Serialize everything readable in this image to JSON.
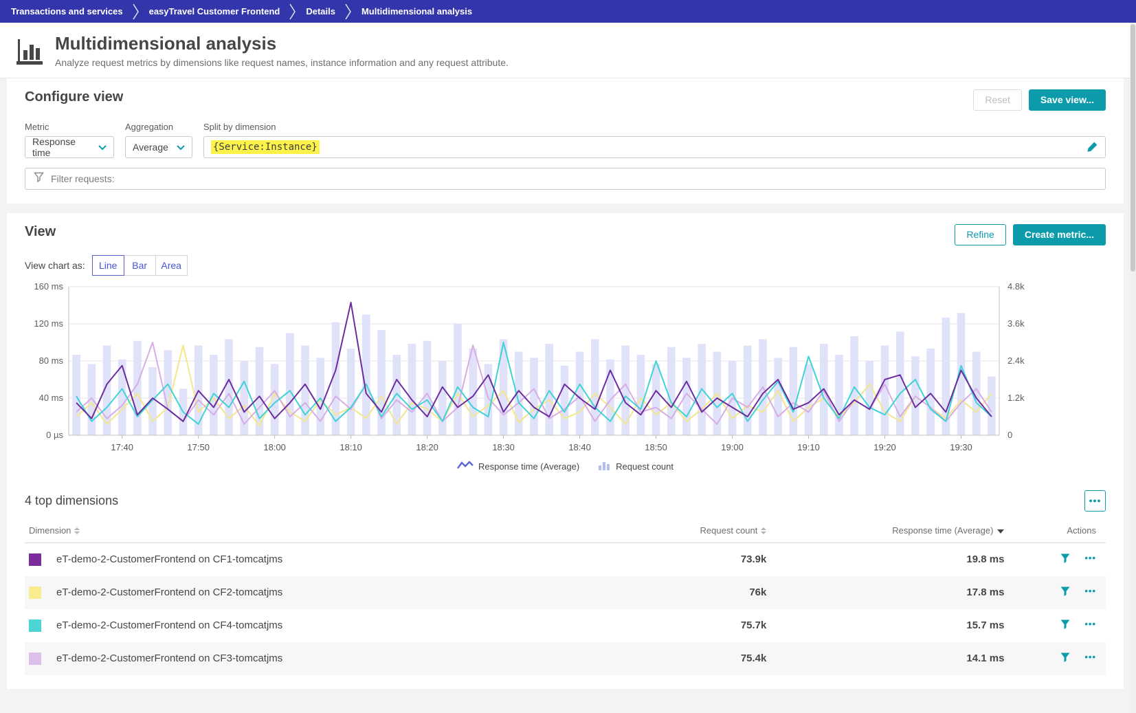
{
  "breadcrumb": {
    "items": [
      "Transactions and services",
      "easyTravel Customer Frontend",
      "Details",
      "Multidimensional analysis"
    ]
  },
  "header": {
    "title": "Multidimensional analysis",
    "subtitle": "Analyze request metrics by dimensions like request names, instance information and any request attribute."
  },
  "configure": {
    "heading": "Configure view",
    "reset_label": "Reset",
    "save_label": "Save view...",
    "metric_label": "Metric",
    "metric_value": "Response time",
    "aggregation_label": "Aggregation",
    "aggregation_value": "Average",
    "split_label": "Split by dimension",
    "split_value": "{Service:Instance}",
    "filter_placeholder": "Filter requests:"
  },
  "view": {
    "heading": "View",
    "refine_label": "Refine",
    "create_metric_label": "Create metric...",
    "chart_as_label": "View chart as:",
    "modes": [
      "Line",
      "Bar",
      "Area"
    ],
    "selected_mode": "Line",
    "legend": [
      {
        "label": "Response time (Average)",
        "type": "line"
      },
      {
        "label": "Request count",
        "type": "bar"
      }
    ]
  },
  "chart_data": {
    "type": "line+bar",
    "title": "Response time (Average) split by {Service:Instance}, with Request count bars",
    "x_ticks": [
      "17:40",
      "17:50",
      "18:00",
      "18:10",
      "18:20",
      "18:30",
      "18:40",
      "18:50",
      "19:00",
      "19:10",
      "19:20",
      "19:30"
    ],
    "x_tick_first_index": 3,
    "x_tick_step": 5,
    "y_left": {
      "label": "Response time",
      "ticks": [
        "160 ms",
        "120 ms",
        "80 ms",
        "40 ms",
        "0 µs"
      ],
      "max": 160
    },
    "y_right": {
      "label": "Request count",
      "ticks": [
        "4.8k",
        "3.6k",
        "2.4k",
        "1.2k",
        "0"
      ],
      "max": 4800
    },
    "grid": true,
    "bars": {
      "name": "Request count",
      "color": "#dfe2f8",
      "values": [
        2600,
        2300,
        2900,
        2450,
        3050,
        2200,
        2750,
        1500,
        2900,
        2600,
        3100,
        2400,
        2850,
        2300,
        3300,
        2900,
        2500,
        3650,
        2800,
        3900,
        3400,
        2600,
        2950,
        3050,
        2400,
        3600,
        2800,
        2300,
        3100,
        2700,
        2500,
        2950,
        2250,
        2700,
        3100,
        2450,
        2900,
        2600,
        2300,
        2850,
        2500,
        2950,
        2700,
        2400,
        2900,
        3100,
        2500,
        2850,
        2300,
        2950,
        2600,
        3200,
        2400,
        2900,
        3350,
        2550,
        2800,
        3800,
        3950,
        2700,
        1900
      ]
    },
    "series": [
      {
        "name": "eT-demo-2-CustomerFrontend on CF1-tomcatjms",
        "color": "#6c2c9e",
        "values": [
          35,
          18,
          55,
          75,
          22,
          40,
          28,
          15,
          48,
          30,
          60,
          25,
          42,
          18,
          35,
          55,
          28,
          70,
          143,
          45,
          25,
          60,
          38,
          20,
          52,
          30,
          42,
          65,
          25,
          48,
          30,
          20,
          55,
          40,
          28,
          70,
          35,
          22,
          48,
          30,
          58,
          25,
          40,
          30,
          20,
          45,
          60,
          28,
          35,
          50,
          22,
          38,
          28,
          60,
          65,
          30,
          45,
          25,
          70,
          40,
          20
        ]
      },
      {
        "name": "eT-demo-2-CustomerFrontend on CF2-tomcatjms",
        "color": "#f3e68b",
        "values": [
          20,
          35,
          12,
          28,
          45,
          15,
          30,
          97,
          25,
          40,
          18,
          32,
          10,
          45,
          25,
          15,
          38,
          22,
          30,
          18,
          42,
          12,
          35,
          28,
          15,
          45,
          20,
          32,
          48,
          14,
          28,
          38,
          18,
          25,
          45,
          30,
          12,
          40,
          22,
          35,
          15,
          28,
          45,
          18,
          32,
          25,
          48,
          15,
          30,
          40,
          20,
          35,
          55,
          25,
          15,
          42,
          30,
          18,
          38,
          25,
          45
        ]
      },
      {
        "name": "eT-demo-2-CustomerFrontend on CF4-tomcatjms",
        "color": "#3fd2d6",
        "values": [
          42,
          15,
          30,
          50,
          20,
          38,
          55,
          25,
          12,
          45,
          30,
          58,
          18,
          35,
          48,
          22,
          40,
          15,
          30,
          55,
          20,
          45,
          28,
          38,
          15,
          52,
          30,
          20,
          100,
          35,
          18,
          48,
          25,
          55,
          30,
          15,
          42,
          28,
          80,
          35,
          20,
          50,
          30,
          45,
          15,
          38,
          58,
          25,
          85,
          40,
          18,
          52,
          30,
          22,
          45,
          60,
          28,
          15,
          75,
          35,
          20
        ]
      },
      {
        "name": "eT-demo-2-CustomerFrontend on CF3-tomcatjms",
        "color": "#d8ace6",
        "values": [
          25,
          40,
          18,
          32,
          55,
          100,
          28,
          15,
          38,
          22,
          45,
          12,
          30,
          48,
          20,
          35,
          15,
          42,
          28,
          55,
          18,
          38,
          25,
          45,
          15,
          30,
          97,
          40,
          22,
          35,
          50,
          18,
          28,
          42,
          15,
          38,
          55,
          25,
          30,
          18,
          45,
          28,
          12,
          40,
          30,
          52,
          20,
          35,
          25,
          48,
          15,
          38,
          28,
          55,
          20,
          42,
          30,
          15,
          35,
          50,
          25
        ]
      }
    ]
  },
  "dimensions": {
    "heading": "4 top dimensions",
    "more_label": "•••",
    "columns": {
      "dimension": "Dimension",
      "request_count": "Request count",
      "response_time": "Response time (Average)",
      "actions": "Actions"
    },
    "rows": [
      {
        "color": "#7b2d9e",
        "name": "eT-demo-2-CustomerFrontend on CF1-tomcatjms",
        "request_count": "73.9k",
        "response_time": "19.8 ms"
      },
      {
        "color": "#f8ec8e",
        "name": "eT-demo-2-CustomerFrontend on CF2-tomcatjms",
        "request_count": "76k",
        "response_time": "17.8 ms"
      },
      {
        "color": "#4dd5d5",
        "name": "eT-demo-2-CustomerFrontend on CF4-tomcatjms",
        "request_count": "75.7k",
        "response_time": "15.7 ms"
      },
      {
        "color": "#dcc0ec",
        "name": "eT-demo-2-CustomerFrontend on CF3-tomcatjms",
        "request_count": "75.4k",
        "response_time": "14.1 ms"
      }
    ]
  },
  "icons": {
    "row_more": "•••"
  },
  "colors": {
    "accent_teal": "#0c9bab",
    "breadcrumb_bg": "#3336ab",
    "highlight_yellow": "#fbf24a",
    "bar_fill": "#dfe2f8",
    "legend_line": "#5966d8",
    "legend_bar": "#b3bcf0"
  }
}
